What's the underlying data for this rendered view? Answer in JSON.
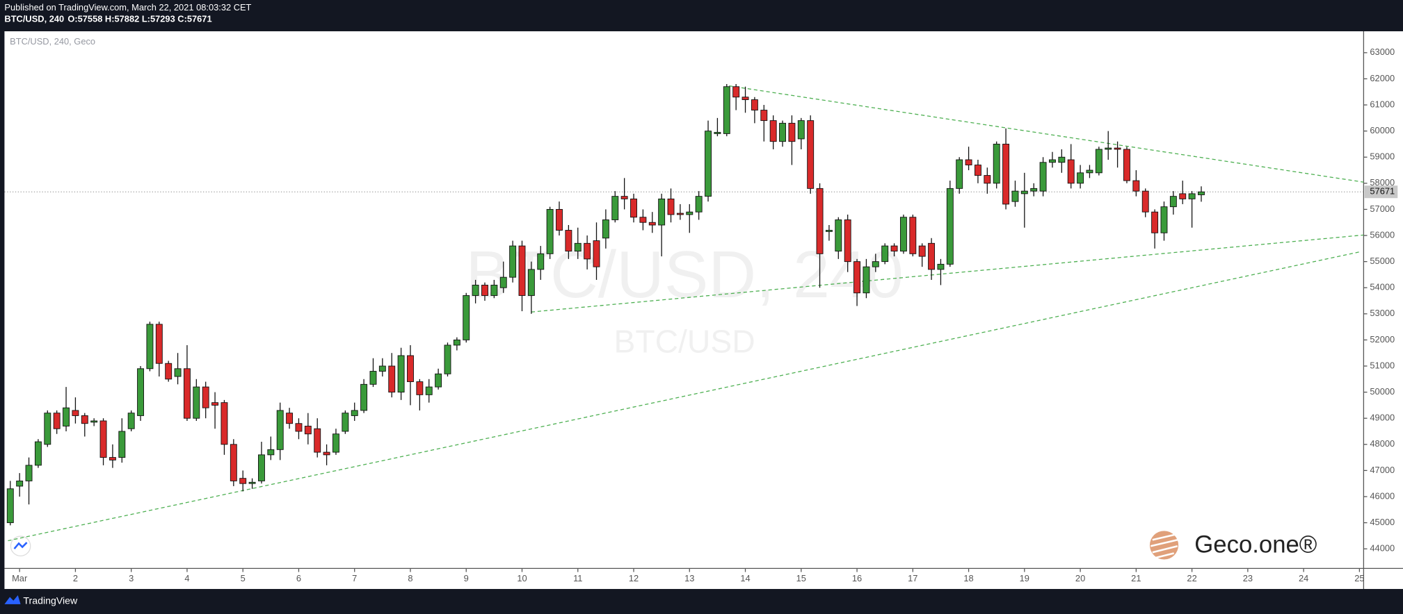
{
  "header": {
    "published": "Published on TradingView.com, March 22, 2021 08:03:32 CET",
    "symbol": "BTC/USD, 240",
    "quote": "O:57558 H:57882 L:57293 C:57671"
  },
  "branding": {
    "logo": "Geco.one®",
    "footer": "TradingView"
  },
  "chart_data": {
    "type": "candlestick",
    "legend_label": "BTC/USD, 240, Geco",
    "watermark": "BTC/USD, 240",
    "watermark_sub": "BTC/USD",
    "up_color": "#3a9a3a",
    "down_color": "#d92a2a",
    "trendline_color": "#4caf50",
    "x": [
      -4,
      0,
      4,
      8,
      12,
      16,
      20,
      24,
      28,
      32,
      36,
      40,
      44,
      48,
      52,
      56,
      60,
      64,
      68,
      72,
      76,
      80,
      84,
      88,
      92,
      96,
      100,
      104,
      108,
      112,
      116,
      120,
      124,
      128,
      132,
      136,
      140,
      144,
      148,
      152,
      156,
      160,
      164,
      168,
      172,
      176,
      180,
      184,
      188,
      192,
      196,
      200,
      204,
      208,
      212,
      216,
      220,
      224,
      228,
      232,
      236,
      240,
      244,
      248,
      252,
      256,
      260,
      264,
      268,
      272,
      276,
      280,
      284,
      288,
      292,
      296,
      300,
      304,
      308,
      312,
      316,
      320,
      324,
      328,
      332,
      336,
      340,
      344,
      348,
      352,
      356,
      360,
      364,
      368,
      372,
      376,
      380,
      384,
      388,
      392,
      396,
      400,
      404,
      408,
      412,
      416,
      420,
      424,
      428,
      432,
      436,
      440,
      444,
      448,
      452,
      456,
      460,
      464,
      468,
      472,
      476,
      480,
      484,
      488,
      492,
      496,
      500,
      504,
      508
    ],
    "ohlc": [
      [
        45000,
        46600,
        44900,
        46300
      ],
      [
        46400,
        46900,
        46000,
        46600
      ],
      [
        46600,
        47500,
        45700,
        47200
      ],
      [
        47200,
        48200,
        47100,
        48100
      ],
      [
        48000,
        49300,
        47900,
        49200
      ],
      [
        49200,
        49300,
        48400,
        48600
      ],
      [
        48700,
        50200,
        48500,
        49400
      ],
      [
        49300,
        49800,
        48800,
        49100
      ],
      [
        49100,
        49200,
        48300,
        48800
      ],
      [
        48850,
        49000,
        48700,
        48900
      ],
      [
        48900,
        49000,
        47200,
        47500
      ],
      [
        47500,
        48000,
        47100,
        47400
      ],
      [
        47500,
        49000,
        47300,
        48500
      ],
      [
        48600,
        49300,
        48500,
        49200
      ],
      [
        49100,
        51000,
        48900,
        50900
      ],
      [
        50900,
        52700,
        50800,
        52600
      ],
      [
        52600,
        52700,
        50600,
        51100
      ],
      [
        51100,
        51200,
        50400,
        50500
      ],
      [
        50600,
        51500,
        50300,
        50900
      ],
      [
        50900,
        51800,
        48900,
        49000
      ],
      [
        49000,
        50500,
        48900,
        50200
      ],
      [
        50200,
        50400,
        49000,
        49400
      ],
      [
        49600,
        50000,
        48600,
        49500
      ],
      [
        49600,
        49700,
        47600,
        48000
      ],
      [
        48000,
        48200,
        46400,
        46600
      ],
      [
        46700,
        47000,
        46200,
        46500
      ],
      [
        46500,
        46700,
        46300,
        46550
      ],
      [
        46600,
        48100,
        46500,
        47600
      ],
      [
        47600,
        48300,
        47400,
        47800
      ],
      [
        47800,
        49600,
        47400,
        49300
      ],
      [
        49200,
        49400,
        48600,
        48800
      ],
      [
        48800,
        49000,
        48200,
        48500
      ],
      [
        48700,
        49200,
        48000,
        48400
      ],
      [
        48600,
        49000,
        47500,
        47700
      ],
      [
        47700,
        48000,
        47200,
        47600
      ],
      [
        47700,
        48600,
        47600,
        48400
      ],
      [
        48500,
        49300,
        48400,
        49200
      ],
      [
        49100,
        49600,
        48900,
        49300
      ],
      [
        49300,
        50500,
        49200,
        50300
      ],
      [
        50300,
        51300,
        50200,
        50800
      ],
      [
        50800,
        51300,
        50600,
        51000
      ],
      [
        51000,
        51500,
        49800,
        50000
      ],
      [
        50000,
        51700,
        49700,
        51400
      ],
      [
        51400,
        51800,
        49500,
        50400
      ],
      [
        50400,
        50500,
        49300,
        49900
      ],
      [
        49900,
        50500,
        49600,
        50200
      ],
      [
        50200,
        50900,
        50100,
        50700
      ],
      [
        50700,
        51900,
        50600,
        51800
      ],
      [
        51800,
        52100,
        51600,
        52000
      ],
      [
        52000,
        53800,
        51900,
        53700
      ],
      [
        53700,
        54300,
        53400,
        54100
      ],
      [
        54100,
        54200,
        53500,
        53700
      ],
      [
        53700,
        54300,
        53600,
        54100
      ],
      [
        54000,
        55000,
        53800,
        54400
      ],
      [
        54400,
        55800,
        54200,
        55600
      ],
      [
        55600,
        55800,
        53100,
        53700
      ],
      [
        53700,
        55000,
        53000,
        54700
      ],
      [
        54700,
        55600,
        54300,
        55300
      ],
      [
        55300,
        57100,
        55100,
        57000
      ],
      [
        57000,
        57300,
        56000,
        56200
      ],
      [
        56200,
        56400,
        55100,
        55400
      ],
      [
        55400,
        56300,
        55100,
        55700
      ],
      [
        55700,
        56000,
        54700,
        55100
      ],
      [
        55800,
        56500,
        54300,
        54800
      ],
      [
        55900,
        57000,
        55500,
        56600
      ],
      [
        56600,
        57700,
        56500,
        57500
      ],
      [
        57500,
        58200,
        57000,
        57400
      ],
      [
        57400,
        57600,
        56500,
        56700
      ],
      [
        56700,
        57000,
        56200,
        56500
      ],
      [
        56500,
        56900,
        56100,
        56400
      ],
      [
        56400,
        57600,
        55200,
        57400
      ],
      [
        57400,
        57800,
        56500,
        56800
      ],
      [
        56850,
        57200,
        56600,
        56800
      ],
      [
        56800,
        57200,
        56100,
        56900
      ],
      [
        56900,
        57700,
        56600,
        57500
      ],
      [
        57500,
        60400,
        57300,
        60000
      ],
      [
        59900,
        60500,
        59800,
        59950
      ],
      [
        59900,
        61800,
        59800,
        61700
      ],
      [
        61700,
        61800,
        60800,
        61300
      ],
      [
        61300,
        61700,
        60700,
        61200
      ],
      [
        61200,
        61300,
        60300,
        60800
      ],
      [
        60800,
        61000,
        59600,
        60400
      ],
      [
        60400,
        60600,
        59300,
        59600
      ],
      [
        59600,
        60400,
        59400,
        60300
      ],
      [
        60300,
        60600,
        58700,
        59600
      ],
      [
        59700,
        60500,
        59300,
        60400
      ],
      [
        60400,
        60600,
        57600,
        57800
      ],
      [
        57800,
        58000,
        54000,
        55300
      ],
      [
        56150,
        56400,
        55800,
        56200
      ],
      [
        55400,
        56700,
        55100,
        56600
      ],
      [
        56600,
        56800,
        54600,
        55000
      ],
      [
        55000,
        55100,
        53300,
        53800
      ],
      [
        53800,
        55100,
        53600,
        54800
      ],
      [
        54800,
        55300,
        54600,
        55000
      ],
      [
        55000,
        55700,
        54900,
        55600
      ],
      [
        55600,
        55700,
        55200,
        55400
      ],
      [
        55400,
        56800,
        55300,
        56700
      ],
      [
        56700,
        56800,
        55200,
        55300
      ],
      [
        55600,
        55700,
        54800,
        55200
      ],
      [
        55700,
        55900,
        54300,
        54700
      ],
      [
        54700,
        55100,
        54100,
        54900
      ],
      [
        54900,
        58100,
        54800,
        57800
      ],
      [
        57800,
        59000,
        57600,
        58900
      ],
      [
        58900,
        59400,
        58500,
        58700
      ],
      [
        58700,
        58900,
        58000,
        58300
      ],
      [
        58300,
        58600,
        57600,
        58000
      ],
      [
        58000,
        59600,
        57800,
        59500
      ],
      [
        59500,
        60100,
        57000,
        57200
      ],
      [
        57300,
        58100,
        57100,
        57700
      ],
      [
        57600,
        58400,
        56300,
        57700
      ],
      [
        57700,
        58000,
        57500,
        57800
      ],
      [
        57700,
        59000,
        57500,
        58800
      ],
      [
        58800,
        59200,
        58600,
        58900
      ],
      [
        58800,
        59300,
        58400,
        59000
      ],
      [
        58900,
        59500,
        57800,
        58000
      ],
      [
        58000,
        58700,
        57800,
        58400
      ],
      [
        58400,
        58700,
        58200,
        58500
      ],
      [
        58400,
        59400,
        58300,
        59300
      ],
      [
        59300,
        60000,
        58900,
        59350
      ],
      [
        59350,
        59600,
        58600,
        59300
      ],
      [
        59300,
        59400,
        58000,
        58100
      ],
      [
        58100,
        58500,
        57500,
        57700
      ],
      [
        57700,
        57800,
        56700,
        56900
      ],
      [
        56900,
        57000,
        55500,
        56100
      ],
      [
        56100,
        57300,
        55800,
        57100
      ],
      [
        57100,
        57700,
        56800,
        57500
      ],
      [
        57600,
        58100,
        57200,
        57400
      ],
      [
        57400,
        57700,
        56300,
        57600
      ],
      [
        57558,
        57882,
        57293,
        57671
      ]
    ],
    "trendlines": [
      {
        "x": [
          305,
          578
        ],
        "y": [
          61730,
          58040
        ]
      },
      {
        "x": [
          220,
          578
        ],
        "y": [
          53070,
          56020
        ]
      },
      {
        "x": [
          -5,
          576
        ],
        "y": [
          44310,
          55370
        ]
      }
    ],
    "last_price": 57671,
    "xlim": [
      -6.5,
      577.8
    ],
    "ylim": [
      43250,
      63820
    ],
    "xticks": [
      {
        "value": 0,
        "label": "Mar"
      },
      {
        "value": 24,
        "label": "2"
      },
      {
        "value": 48,
        "label": "3"
      },
      {
        "value": 72,
        "label": "4"
      },
      {
        "value": 96,
        "label": "5"
      },
      {
        "value": 120,
        "label": "6"
      },
      {
        "value": 144,
        "label": "7"
      },
      {
        "value": 168,
        "label": "8"
      },
      {
        "value": 192,
        "label": "9"
      },
      {
        "value": 216,
        "label": "10"
      },
      {
        "value": 240,
        "label": "11"
      },
      {
        "value": 264,
        "label": "12"
      },
      {
        "value": 288,
        "label": "13"
      },
      {
        "value": 312,
        "label": "14"
      },
      {
        "value": 336,
        "label": "15"
      },
      {
        "value": 360,
        "label": "16"
      },
      {
        "value": 384,
        "label": "17"
      },
      {
        "value": 408,
        "label": "18"
      },
      {
        "value": 432,
        "label": "19"
      },
      {
        "value": 456,
        "label": "20"
      },
      {
        "value": 480,
        "label": "21"
      },
      {
        "value": 504,
        "label": "22"
      },
      {
        "value": 528,
        "label": "23"
      },
      {
        "value": 552,
        "label": "24"
      },
      {
        "value": 576,
        "label": "25"
      }
    ],
    "yticks": [
      44000,
      45000,
      46000,
      47000,
      48000,
      49000,
      50000,
      51000,
      52000,
      53000,
      54000,
      55000,
      56000,
      57000,
      58000,
      59000,
      60000,
      61000,
      62000,
      63000
    ]
  }
}
